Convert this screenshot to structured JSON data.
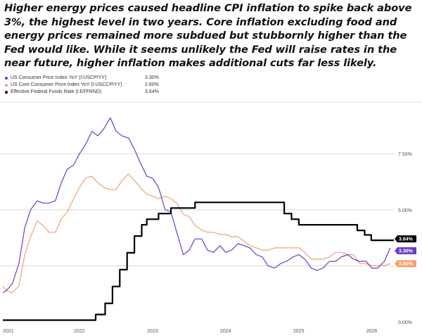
{
  "headline": "Higher energy prices caused headline CPI inflation to spike back above 3%, the highest level in two years. Core inflation excluding food and energy prices remained more subdued but stubbornly higher than the Fed would like. While it seems unlikely the Fed will raise rates in the near future, higher inflation makes additional cuts far less likely.",
  "colors": {
    "cpi": "#6b3ec4",
    "core": "#f3a16f",
    "ffr": "#000000",
    "grid": "#d9d9d9"
  },
  "chart_data": {
    "type": "line",
    "title": "",
    "xlabel": "",
    "ylabel": "",
    "x_ticks": [
      {
        "label": "2021",
        "x": 2021.0
      },
      {
        "label": "2022",
        "x": 2022.0
      },
      {
        "label": "2023",
        "x": 2023.0
      },
      {
        "label": "2024",
        "x": 2024.0
      },
      {
        "label": "2025",
        "x": 2025.0
      },
      {
        "label": "2026",
        "x": 2026.0
      }
    ],
    "y_ticks": [
      {
        "label": "0.00%",
        "y": 0
      },
      {
        "label": "5.00%",
        "y": 5
      },
      {
        "label": "7.50%",
        "y": 7.5
      }
    ],
    "xlim": [
      2020.95,
      2026.3
    ],
    "ylim": [
      0,
      9.8
    ],
    "gridlines": [
      2.5,
      5.0,
      7.5
    ],
    "series": [
      {
        "key": "cpi",
        "name": "US Consumer Price Index YoY (I:USCPIYY)",
        "last_value": "3.30%",
        "x": [
          2020.95,
          2021.0,
          2021.08,
          2021.17,
          2021.25,
          2021.33,
          2021.42,
          2021.5,
          2021.58,
          2021.67,
          2021.75,
          2021.83,
          2021.92,
          2022.0,
          2022.08,
          2022.17,
          2022.25,
          2022.33,
          2022.42,
          2022.5,
          2022.58,
          2022.67,
          2022.75,
          2022.83,
          2022.92,
          2023.0,
          2023.08,
          2023.17,
          2023.25,
          2023.33,
          2023.42,
          2023.5,
          2023.58,
          2023.67,
          2023.75,
          2023.83,
          2023.92,
          2024.0,
          2024.08,
          2024.17,
          2024.25,
          2024.33,
          2024.42,
          2024.5,
          2024.58,
          2024.67,
          2024.75,
          2024.83,
          2024.92,
          2025.0,
          2025.08,
          2025.17,
          2025.25,
          2025.33,
          2025.42,
          2025.5,
          2025.58,
          2025.67,
          2025.75,
          2025.83,
          2025.92,
          2026.0,
          2026.08,
          2026.17,
          2026.25
        ],
        "values": [
          1.3,
          1.4,
          1.7,
          2.6,
          4.2,
          5.0,
          5.4,
          5.3,
          5.3,
          5.4,
          6.2,
          6.8,
          7.0,
          7.5,
          7.9,
          8.5,
          8.3,
          8.6,
          9.1,
          8.5,
          8.3,
          8.2,
          7.7,
          7.1,
          6.5,
          6.4,
          6.0,
          5.0,
          4.9,
          4.0,
          3.0,
          3.2,
          3.7,
          3.7,
          3.2,
          3.1,
          3.4,
          3.1,
          3.2,
          3.5,
          3.4,
          3.3,
          3.0,
          2.9,
          2.5,
          2.4,
          2.6,
          2.7,
          2.9,
          3.0,
          2.8,
          2.4,
          2.3,
          2.4,
          2.7,
          2.7,
          2.9,
          3.0,
          2.8,
          2.7,
          2.7,
          2.4,
          2.4,
          2.7,
          3.3
        ]
      },
      {
        "key": "core",
        "name": "US Core Consumer Price Index YoY (I:USCCPIYY)",
        "last_value": "2.60%",
        "x": [
          2020.95,
          2021.0,
          2021.08,
          2021.17,
          2021.25,
          2021.33,
          2021.42,
          2021.5,
          2021.58,
          2021.67,
          2021.75,
          2021.83,
          2021.92,
          2022.0,
          2022.08,
          2022.17,
          2022.25,
          2022.33,
          2022.42,
          2022.5,
          2022.58,
          2022.67,
          2022.75,
          2022.83,
          2022.92,
          2023.0,
          2023.08,
          2023.17,
          2023.25,
          2023.33,
          2023.42,
          2023.5,
          2023.58,
          2023.67,
          2023.75,
          2023.83,
          2023.92,
          2024.0,
          2024.08,
          2024.17,
          2024.25,
          2024.33,
          2024.42,
          2024.5,
          2024.58,
          2024.67,
          2024.75,
          2024.83,
          2024.92,
          2025.0,
          2025.08,
          2025.17,
          2025.25,
          2025.33,
          2025.42,
          2025.5,
          2025.58,
          2025.67,
          2025.75,
          2025.83,
          2025.92,
          2026.0,
          2026.08,
          2026.17,
          2026.25
        ],
        "values": [
          1.6,
          1.4,
          1.3,
          1.6,
          3.0,
          3.8,
          4.5,
          4.3,
          4.0,
          4.0,
          4.6,
          4.9,
          5.5,
          6.0,
          6.4,
          6.5,
          6.2,
          6.0,
          5.9,
          5.9,
          6.3,
          6.6,
          6.3,
          6.0,
          5.7,
          5.6,
          5.5,
          5.6,
          5.5,
          5.3,
          4.8,
          4.7,
          4.3,
          4.1,
          4.0,
          4.0,
          3.9,
          3.9,
          3.8,
          3.8,
          3.6,
          3.4,
          3.3,
          3.2,
          3.2,
          3.3,
          3.3,
          3.3,
          3.3,
          3.3,
          3.1,
          2.8,
          2.8,
          2.8,
          2.9,
          3.1,
          3.1,
          3.0,
          3.0,
          2.6,
          2.6,
          2.5,
          2.5,
          2.5,
          2.6
        ]
      },
      {
        "key": "ffr",
        "name": "Effective Federal Funds Rate (I:EFFRND)",
        "last_value": "3.64%",
        "step": true,
        "x": [
          2020.95,
          2022.22,
          2022.35,
          2022.45,
          2022.55,
          2022.65,
          2022.75,
          2022.85,
          2022.92,
          2023.0,
          2023.08,
          2023.17,
          2023.25,
          2023.33,
          2023.58,
          2024.7,
          2024.8,
          2024.9,
          2025.0,
          2025.7,
          2025.8,
          2025.9,
          2025.99,
          2026.3
        ],
        "values": [
          0.08,
          0.33,
          0.83,
          1.58,
          2.33,
          3.08,
          3.83,
          4.33,
          4.58,
          4.58,
          4.83,
          4.83,
          5.08,
          5.08,
          5.33,
          5.33,
          4.83,
          4.58,
          4.33,
          4.33,
          4.08,
          3.88,
          3.64,
          3.64
        ]
      }
    ]
  }
}
